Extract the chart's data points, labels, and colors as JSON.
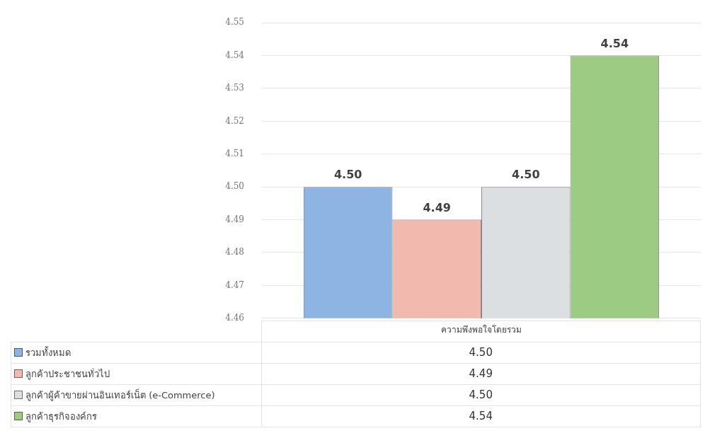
{
  "chart_data": {
    "type": "bar",
    "categories": [
      "ความพึงพอใจโดยรวม"
    ],
    "series": [
      {
        "name": "รวมทั้งหมด",
        "color": "#8db4e2",
        "values": [
          4.5
        ],
        "value_labels": [
          "4.50"
        ]
      },
      {
        "name": "ลูกค้าประชาชนทั่วไป",
        "color": "#f2b9ae",
        "values": [
          4.49
        ],
        "value_labels": [
          "4.49"
        ]
      },
      {
        "name": "ลูกค้าผู้ค้าขายผ่านอินเทอร์เน็ต (e-Commerce)",
        "color": "#dcdfe2",
        "values": [
          4.5
        ],
        "value_labels": [
          "4.50"
        ]
      },
      {
        "name": "ลูกค้าธุรกิจองค์กร",
        "color": "#9ccc84",
        "values": [
          4.54
        ],
        "value_labels": [
          "4.54"
        ]
      }
    ],
    "ylim": [
      4.46,
      4.55
    ],
    "yticks": [
      {
        "value": 4.46,
        "label": "4.46"
      },
      {
        "value": 4.47,
        "label": "4.47"
      },
      {
        "value": 4.48,
        "label": "4.48"
      },
      {
        "value": 4.49,
        "label": "4.49"
      },
      {
        "value": 4.5,
        "label": "4.50"
      },
      {
        "value": 4.51,
        "label": "4.51"
      },
      {
        "value": 4.52,
        "label": "4.52"
      },
      {
        "value": 4.53,
        "label": "4.53"
      },
      {
        "value": 4.54,
        "label": "4.54"
      },
      {
        "value": 4.55,
        "label": "4.55"
      }
    ],
    "grid": "y",
    "legend": "bottom"
  }
}
